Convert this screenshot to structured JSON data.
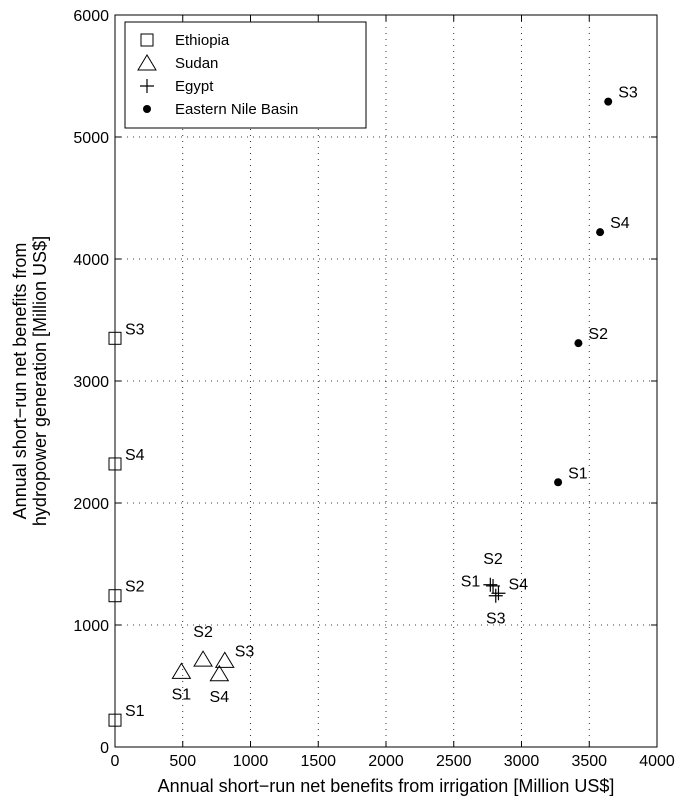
{
  "chart_data": {
    "type": "scatter",
    "xlabel": "Annual short−run net benefits from irrigation [Million US$]",
    "ylabel_lines": [
      "Annual short−run net benefits from",
      "hydropower generation [Million US$]"
    ],
    "xlim": [
      0,
      4000
    ],
    "ylim": [
      0,
      6000
    ],
    "x_ticks": [
      0,
      500,
      1000,
      1500,
      2000,
      2500,
      3000,
      3500,
      4000
    ],
    "y_ticks": [
      0,
      1000,
      2000,
      3000,
      4000,
      5000,
      6000
    ],
    "grid": true,
    "legend_position": "top-left",
    "series": [
      {
        "name": "Ethiopia",
        "marker": "square",
        "points": [
          {
            "label": "S1",
            "x": 0,
            "y": 220,
            "label_pos": "right"
          },
          {
            "label": "S2",
            "x": 0,
            "y": 1240,
            "label_pos": "right"
          },
          {
            "label": "S3",
            "x": 0,
            "y": 3350,
            "label_pos": "right"
          },
          {
            "label": "S4",
            "x": 0,
            "y": 2320,
            "label_pos": "right"
          }
        ]
      },
      {
        "name": "Sudan",
        "marker": "triangle",
        "points": [
          {
            "label": "S1",
            "x": 490,
            "y": 620,
            "label_pos": "below"
          },
          {
            "label": "S2",
            "x": 650,
            "y": 720,
            "label_pos": "above"
          },
          {
            "label": "S3",
            "x": 810,
            "y": 710,
            "label_pos": "right"
          },
          {
            "label": "S4",
            "x": 770,
            "y": 600,
            "label_pos": "below"
          }
        ]
      },
      {
        "name": "Egypt",
        "marker": "plus",
        "points": [
          {
            "label": "S1",
            "x": 2770,
            "y": 1330,
            "label_pos": "left"
          },
          {
            "label": "S2",
            "x": 2790,
            "y": 1320,
            "label_pos": "above"
          },
          {
            "label": "S3",
            "x": 2810,
            "y": 1240,
            "label_pos": "below"
          },
          {
            "label": "S4",
            "x": 2830,
            "y": 1260,
            "label_pos": "right"
          }
        ]
      },
      {
        "name": "Eastern Nile Basin",
        "marker": "dot",
        "points": [
          {
            "label": "S1",
            "x": 3270,
            "y": 2170,
            "label_pos": "right"
          },
          {
            "label": "S2",
            "x": 3420,
            "y": 3310,
            "label_pos": "right"
          },
          {
            "label": "S3",
            "x": 3640,
            "y": 5290,
            "label_pos": "right"
          },
          {
            "label": "S4",
            "x": 3580,
            "y": 4220,
            "label_pos": "right"
          }
        ]
      }
    ]
  }
}
